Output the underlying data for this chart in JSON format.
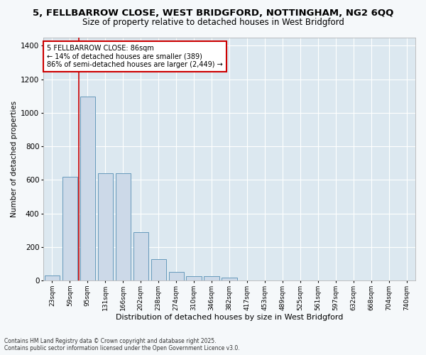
{
  "title1": "5, FELLBARROW CLOSE, WEST BRIDGFORD, NOTTINGHAM, NG2 6QQ",
  "title2": "Size of property relative to detached houses in West Bridgford",
  "xlabel": "Distribution of detached houses by size in West Bridgford",
  "ylabel": "Number of detached properties",
  "categories": [
    "23sqm",
    "59sqm",
    "95sqm",
    "131sqm",
    "166sqm",
    "202sqm",
    "238sqm",
    "274sqm",
    "310sqm",
    "346sqm",
    "382sqm",
    "417sqm",
    "453sqm",
    "489sqm",
    "525sqm",
    "561sqm",
    "597sqm",
    "632sqm",
    "668sqm",
    "704sqm",
    "740sqm"
  ],
  "values": [
    30,
    620,
    1095,
    640,
    640,
    290,
    125,
    50,
    25,
    25,
    15,
    0,
    0,
    0,
    0,
    0,
    0,
    0,
    0,
    0,
    0
  ],
  "bar_color": "#ccd9e8",
  "bar_edge_color": "#6699bb",
  "vline_x": 1.5,
  "vline_color": "#cc0000",
  "annotation_line1": "5 FELLBARROW CLOSE: 86sqm",
  "annotation_line2": "← 14% of detached houses are smaller (389)",
  "annotation_line3": "86% of semi-detached houses are larger (2,449) →",
  "annotation_box_color": "#cc0000",
  "ylim": [
    0,
    1450
  ],
  "yticks": [
    0,
    200,
    400,
    600,
    800,
    1000,
    1200,
    1400
  ],
  "bg_color": "#dce8f0",
  "grid_color": "#ffffff",
  "fig_bg_color": "#f5f8fa",
  "footer1": "Contains HM Land Registry data © Crown copyright and database right 2025.",
  "footer2": "Contains public sector information licensed under the Open Government Licence v3.0.",
  "title_fontsize": 9.5,
  "subtitle_fontsize": 8.5,
  "ann_fontsize": 7,
  "bar_width": 0.85
}
